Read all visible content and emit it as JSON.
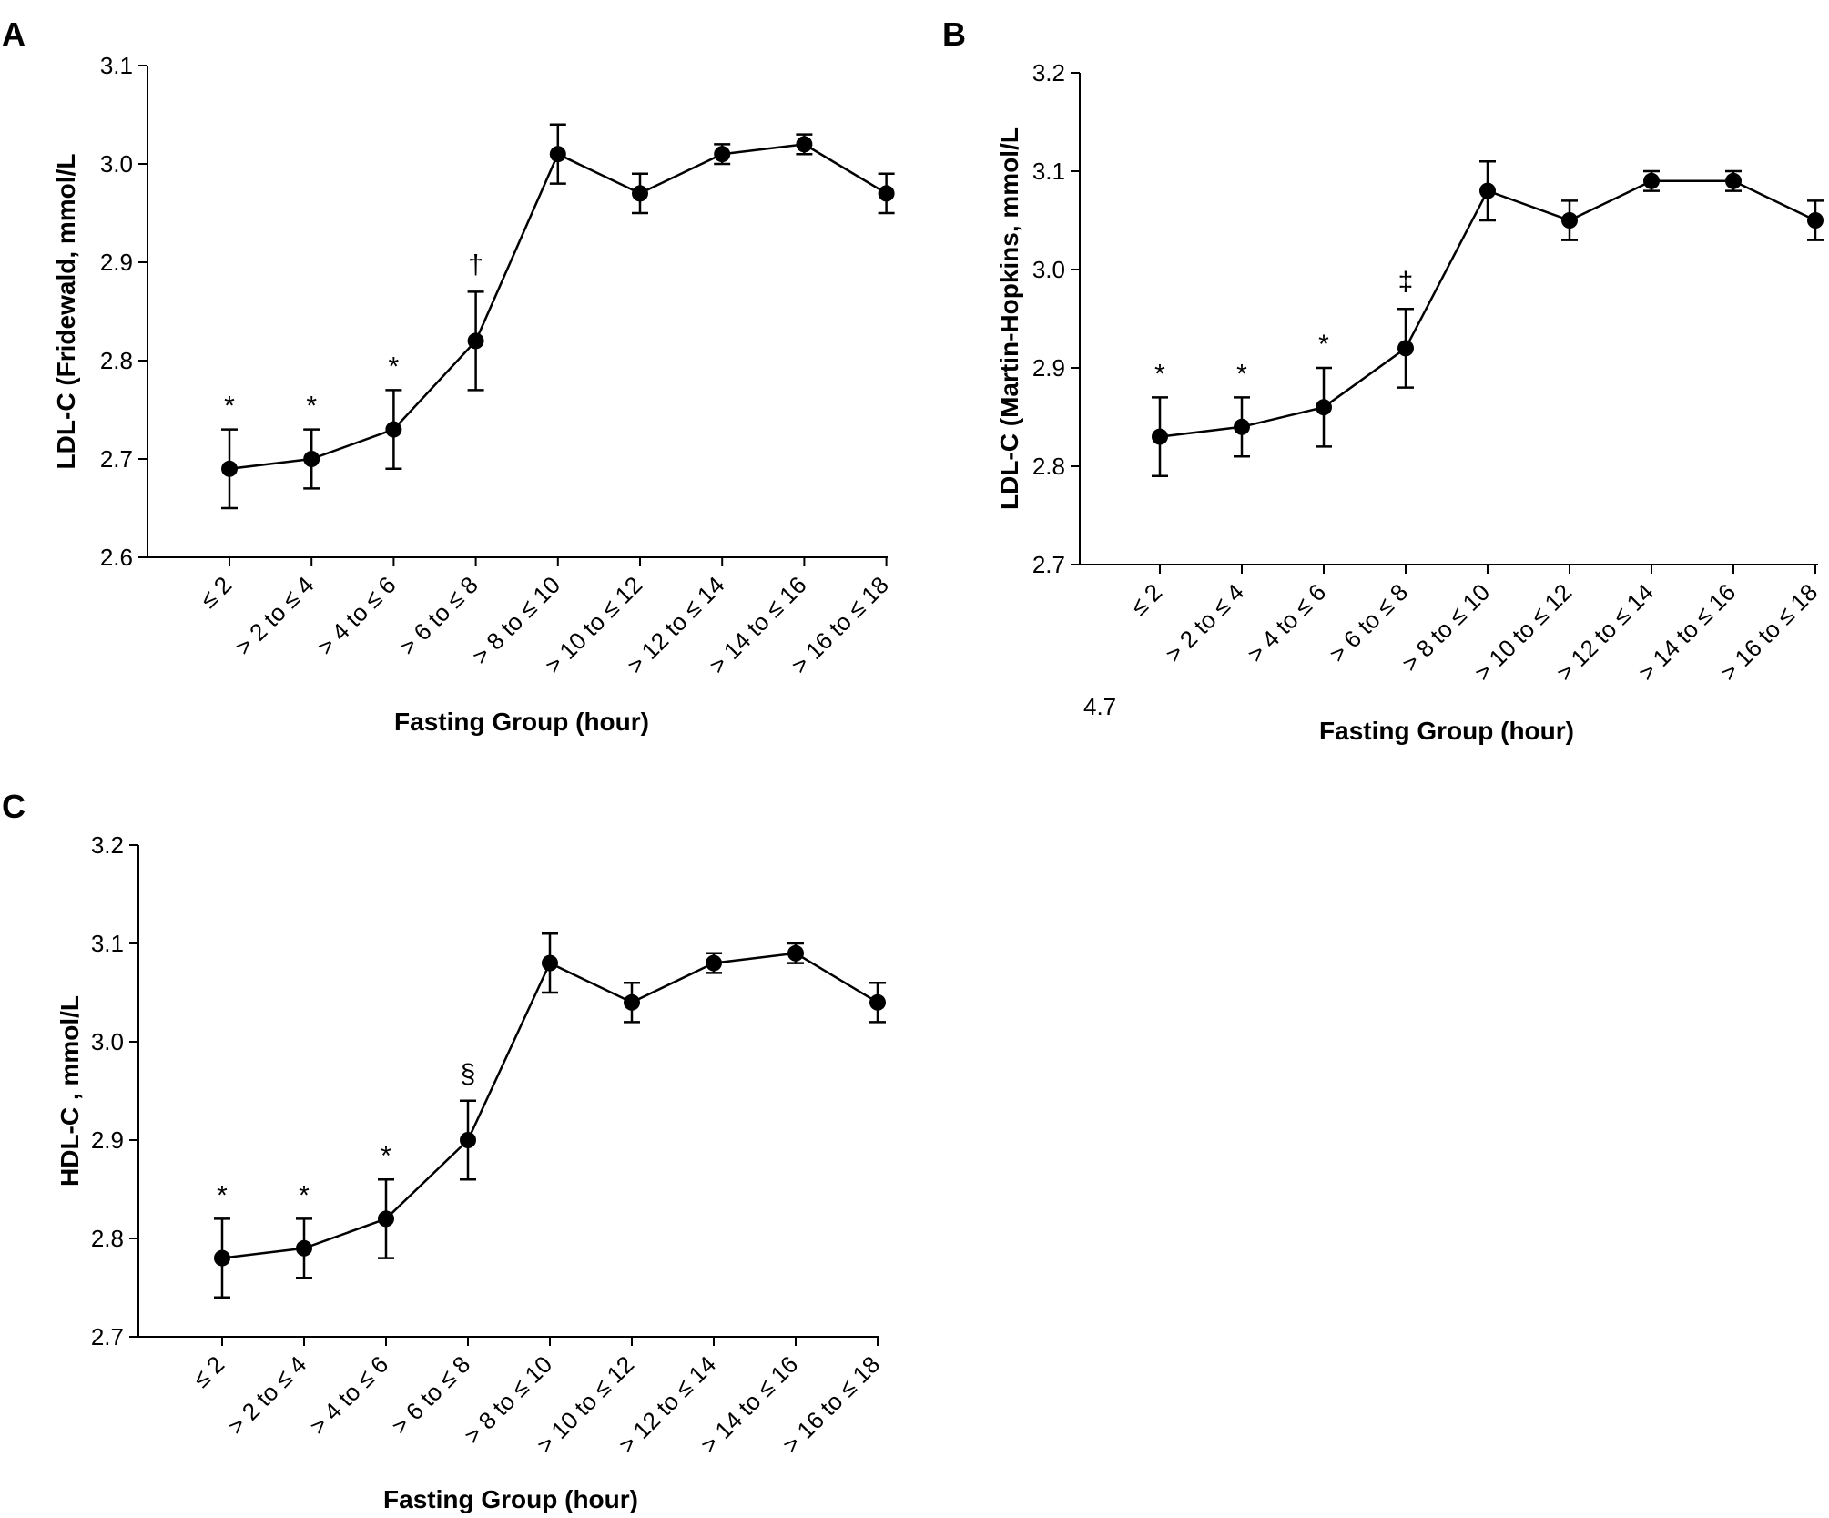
{
  "chart_data": [
    {
      "panel": "A",
      "type": "line",
      "title": "",
      "xlabel": "Fasting Group (hour)",
      "ylabel": "LDL-C (Fridewald, mmol/L",
      "ylim": [
        2.6,
        3.1
      ],
      "yticks": [
        "2.6",
        "2.7",
        "2.8",
        "2.9",
        "3.0",
        "3.1"
      ],
      "categories": [
        "≤ 2",
        "> 2 to ≤ 4",
        "> 4 to ≤ 6",
        "> 6 to ≤ 8",
        "> 8 to ≤ 10",
        "> 10 to ≤ 12",
        "> 12 to ≤ 14",
        "> 14 to ≤ 16",
        "> 16 to ≤ 18"
      ],
      "values": [
        2.69,
        2.7,
        2.73,
        2.82,
        3.01,
        2.97,
        3.01,
        3.02,
        2.97
      ],
      "error_low": [
        2.65,
        2.67,
        2.69,
        2.77,
        2.98,
        2.95,
        3.0,
        3.01,
        2.95
      ],
      "error_high": [
        2.73,
        2.73,
        2.77,
        2.87,
        3.04,
        2.99,
        3.02,
        3.03,
        2.99
      ],
      "annotations": [
        "*",
        "*",
        "*",
        "†",
        "",
        "",
        "",
        "",
        ""
      ],
      "grid": false
    },
    {
      "panel": "B",
      "type": "line",
      "title": "",
      "xlabel": "Fasting Group (hour)",
      "ylabel": "LDL-C (Martin-Hopkins, mmol/L",
      "ylim": [
        2.7,
        3.2
      ],
      "yticks": [
        "2.7",
        "2.8",
        "2.9",
        "3.0",
        "3.1",
        "3.2"
      ],
      "categories": [
        "≤ 2",
        "> 2 to ≤ 4",
        "> 4 to ≤ 6",
        "> 6 to ≤ 8",
        "> 8 to ≤ 10",
        "> 10 to ≤ 12",
        "> 12 to ≤ 14",
        "> 14 to ≤ 16",
        "> 16 to ≤ 18"
      ],
      "values": [
        2.83,
        2.84,
        2.86,
        2.92,
        3.08,
        3.05,
        3.09,
        3.09,
        3.05
      ],
      "error_low": [
        2.79,
        2.81,
        2.82,
        2.88,
        3.05,
        3.03,
        3.08,
        3.08,
        3.03
      ],
      "error_high": [
        2.87,
        2.87,
        2.9,
        2.96,
        3.11,
        3.07,
        3.1,
        3.1,
        3.07
      ],
      "annotations": [
        "*",
        "*",
        "*",
        "‡",
        "",
        "",
        "",
        "",
        ""
      ],
      "extra_label": "4.7",
      "grid": false
    },
    {
      "panel": "C",
      "type": "line",
      "title": "",
      "xlabel": "Fasting Group (hour)",
      "ylabel": "HDL-C , mmol/L",
      "ylim": [
        2.7,
        3.2
      ],
      "yticks": [
        "2.7",
        "2.8",
        "2.9",
        "3.0",
        "3.1",
        "3.2"
      ],
      "categories": [
        "≤ 2",
        "> 2 to ≤ 4",
        "> 4 to ≤ 6",
        "> 6 to ≤ 8",
        "> 8 to ≤ 10",
        "> 10 to ≤ 12",
        "> 12 to ≤ 14",
        "> 14 to ≤ 16",
        "> 16 to ≤ 18"
      ],
      "values": [
        2.78,
        2.79,
        2.82,
        2.9,
        3.08,
        3.04,
        3.08,
        3.09,
        3.04
      ],
      "error_low": [
        2.74,
        2.76,
        2.78,
        2.86,
        3.05,
        3.02,
        3.07,
        3.08,
        3.02
      ],
      "error_high": [
        2.82,
        2.82,
        2.86,
        2.94,
        3.11,
        3.06,
        3.09,
        3.1,
        3.06
      ],
      "annotations": [
        "*",
        "*",
        "*",
        "§",
        "",
        "",
        "",
        "",
        ""
      ],
      "grid": false
    }
  ]
}
